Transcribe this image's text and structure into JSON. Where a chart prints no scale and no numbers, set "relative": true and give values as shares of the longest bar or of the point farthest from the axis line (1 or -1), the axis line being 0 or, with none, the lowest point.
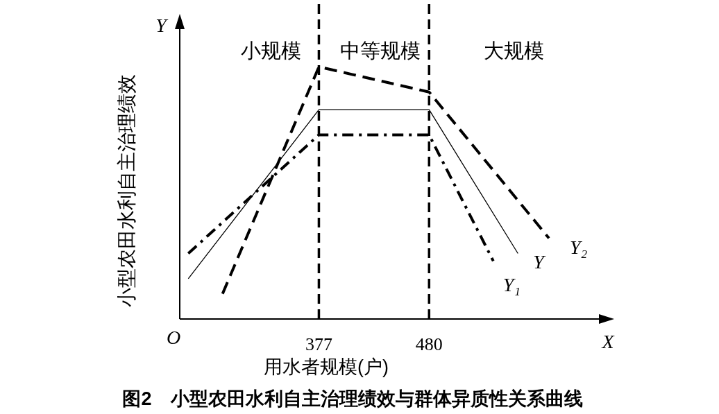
{
  "chart_data": {
    "type": "line",
    "title": "图2　小型农田水利自主治理绩效与群体异质性关系曲线",
    "xlabel": "用水者规模(户)",
    "ylabel": "小型农田水利自主治理绩效",
    "relative": true,
    "xlim": [
      247,
      640
    ],
    "xticks": [
      377,
      480
    ],
    "series": [
      {
        "name": "Y",
        "color": "#000000",
        "line_style": "solid",
        "x": [
          255,
          377,
          480,
          563
        ],
        "values": [
          0.16,
          0.83,
          0.83,
          0.26
        ]
      },
      {
        "name": "Y₁",
        "color": "#000000",
        "line_style": "dashdot",
        "x": [
          255,
          377,
          480,
          540
        ],
        "values": [
          0.26,
          0.73,
          0.73,
          0.23
        ]
      },
      {
        "name": "Y₂",
        "color": "#000000",
        "line_style": "dashed",
        "x": [
          287,
          377,
          480,
          592
        ],
        "values": [
          0.1,
          1,
          0.9,
          0.32
        ]
      }
    ],
    "ref_lines": [
      {
        "axis": "x",
        "value": 377,
        "line_style": "dashed",
        "color": "#000000"
      },
      {
        "axis": "x",
        "value": 480,
        "line_style": "dashed",
        "color": "#000000"
      }
    ],
    "annotations": [
      "小规模",
      "中等规模",
      "大规模",
      "Y",
      "X",
      "O"
    ],
    "grid": false,
    "legend": false,
    "marker": "none"
  }
}
